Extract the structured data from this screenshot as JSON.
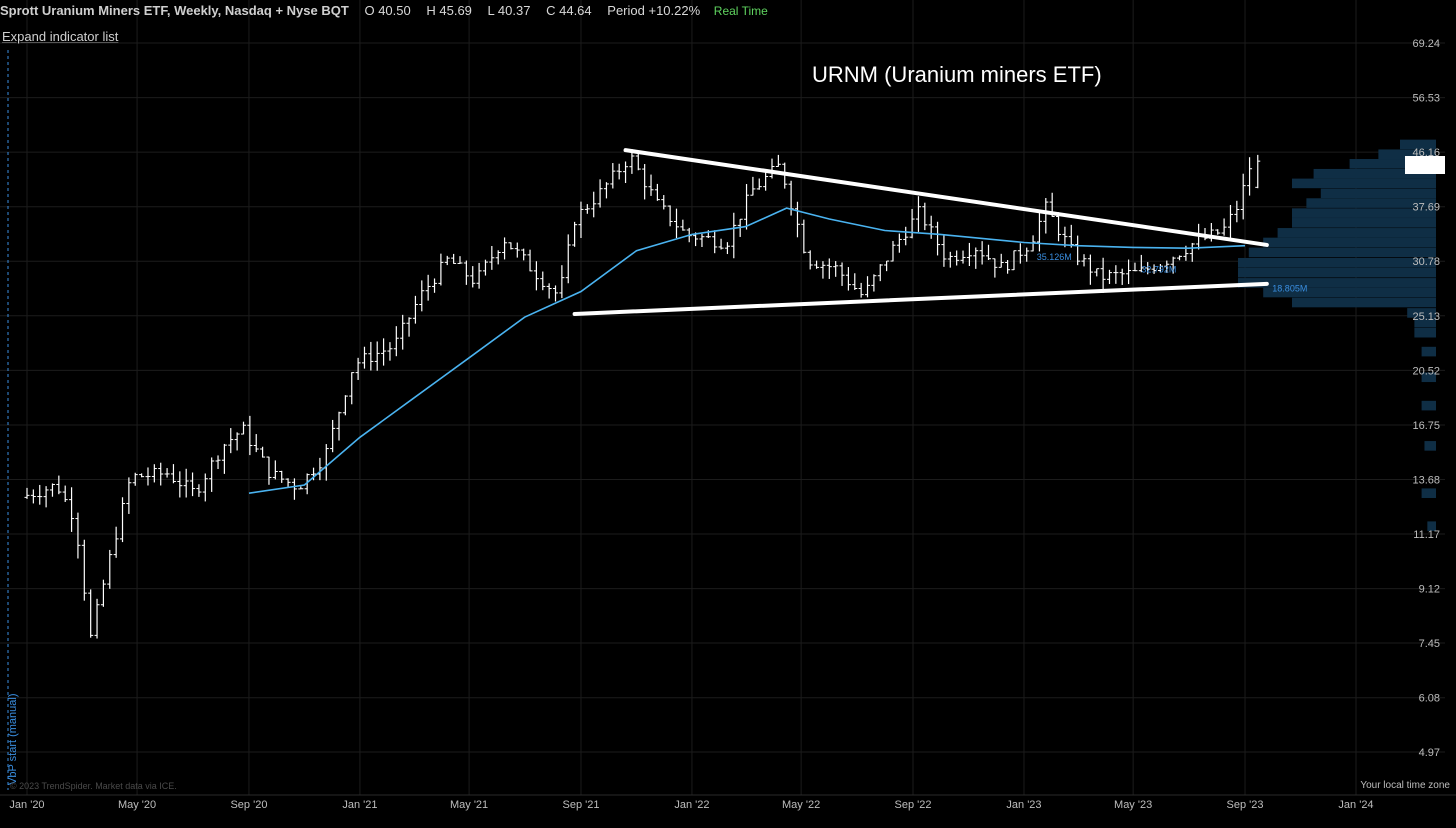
{
  "header": {
    "symbol": "Sprott Uranium Miners ETF, Weekly, Nasdaq + Nyse BQT",
    "open_label": "O",
    "open": "40.50",
    "high_label": "H",
    "high": "45.69",
    "low_label": "L",
    "low": "40.37",
    "close_label": "C",
    "close": "44.64",
    "period_label": "Period",
    "period": "+10.22%",
    "realtime": "Real Time"
  },
  "expand_label": "Expand indicator list",
  "vbp_label": "VbP start (manual)",
  "copyright": "© 2023 TrendSpider. Market data via ICE.",
  "timezone_label": "Your local time zone",
  "colors": {
    "background": "#000000",
    "bars": "#ffffff",
    "moving_average": "#4ab3f0",
    "volume_profile": "#0f2e45",
    "volume_label": "#3a8ee0",
    "trendlines": "#ffffff",
    "grid": "#1c1c1c"
  },
  "chart_data": {
    "type": "ohlc",
    "title": "URNM (Uranium miners ETF)",
    "y_scale": "log",
    "y_ticks": [
      "69.24",
      "56.53",
      "46.16",
      "37.69",
      "30.78",
      "25.13",
      "20.52",
      "16.75",
      "13.68",
      "11.17",
      "9.12",
      "7.45",
      "6.08",
      "4.97"
    ],
    "x_ticks": [
      "Jan '20",
      "May '20",
      "Sep '20",
      "Jan '21",
      "May '21",
      "Sep '21",
      "Jan '22",
      "May '22",
      "Sep '22",
      "Jan '23",
      "May '23",
      "Sep '23",
      "Jan '24"
    ],
    "price_path": [
      [
        "2020-01-01",
        12.8
      ],
      [
        "2020-02-10",
        13.4
      ],
      [
        "2020-03-01",
        11.8
      ],
      [
        "2020-03-18",
        7.6
      ],
      [
        "2020-04-10",
        10.5
      ],
      [
        "2020-05-01",
        13.8
      ],
      [
        "2020-06-10",
        14.0
      ],
      [
        "2020-07-10",
        13.0
      ],
      [
        "2020-08-10",
        15.5
      ],
      [
        "2020-09-01",
        16.5
      ],
      [
        "2020-10-01",
        14.0
      ],
      [
        "2020-11-01",
        13.3
      ],
      [
        "2020-12-01",
        15.0
      ],
      [
        "2021-01-01",
        21.0
      ],
      [
        "2021-02-15",
        22.5
      ],
      [
        "2021-03-15",
        27.0
      ],
      [
        "2021-04-15",
        31.0
      ],
      [
        "2021-05-15",
        28.5
      ],
      [
        "2021-06-15",
        33.5
      ],
      [
        "2021-07-15",
        30.0
      ],
      [
        "2021-08-15",
        27.0
      ],
      [
        "2021-09-01",
        36.0
      ],
      [
        "2021-10-01",
        40.0
      ],
      [
        "2021-11-01",
        45.5
      ],
      [
        "2021-12-01",
        38.0
      ],
      [
        "2022-01-01",
        34.0
      ],
      [
        "2022-02-15",
        33.0
      ],
      [
        "2022-03-15",
        40.0
      ],
      [
        "2022-04-15",
        44.0
      ],
      [
        "2022-05-15",
        31.0
      ],
      [
        "2022-06-15",
        30.0
      ],
      [
        "2022-07-15",
        27.0
      ],
      [
        "2022-08-15",
        32.0
      ],
      [
        "2022-09-15",
        37.0
      ],
      [
        "2022-10-15",
        31.0
      ],
      [
        "2022-11-15",
        32.5
      ],
      [
        "2022-12-15",
        30.0
      ],
      [
        "2023-01-15",
        33.0
      ],
      [
        "2023-02-01",
        37.5
      ],
      [
        "2023-03-01",
        32.0
      ],
      [
        "2023-04-01",
        29.0
      ],
      [
        "2023-05-15",
        29.5
      ],
      [
        "2023-06-15",
        31.0
      ],
      [
        "2023-07-15",
        33.0
      ],
      [
        "2023-08-15",
        34.5
      ],
      [
        "2023-09-01",
        38.0
      ],
      [
        "2023-09-15",
        44.64
      ]
    ],
    "last_bar": {
      "open": 40.5,
      "high": 45.69,
      "low": 40.37,
      "close": 44.64
    },
    "moving_average": [
      [
        "2020-09-01",
        13.0
      ],
      [
        "2020-11-01",
        13.4
      ],
      [
        "2021-01-01",
        16.0
      ],
      [
        "2021-03-01",
        18.5
      ],
      [
        "2021-05-01",
        21.5
      ],
      [
        "2021-07-01",
        25.0
      ],
      [
        "2021-09-01",
        27.5
      ],
      [
        "2021-11-01",
        32.0
      ],
      [
        "2022-01-01",
        34.0
      ],
      [
        "2022-03-01",
        35.0
      ],
      [
        "2022-04-15",
        37.5
      ],
      [
        "2022-06-01",
        36.0
      ],
      [
        "2022-08-01",
        34.5
      ],
      [
        "2022-10-01",
        34.0
      ],
      [
        "2023-01-01",
        33.0
      ],
      [
        "2023-03-01",
        32.6
      ],
      [
        "2023-05-01",
        32.4
      ],
      [
        "2023-07-01",
        32.3
      ],
      [
        "2023-09-01",
        32.6
      ]
    ],
    "trendlines": [
      {
        "name": "upper",
        "from": [
          "2021-10-20",
          46.5
        ],
        "to": [
          "2023-09-25",
          32.7
        ]
      },
      {
        "name": "lower",
        "from": [
          "2021-08-25",
          25.3
        ],
        "to": [
          "2023-09-25",
          28.3
        ]
      }
    ],
    "volume_profile": {
      "labels": [
        {
          "text": "35.126M",
          "price": 30.9,
          "date": "2023-01-15"
        },
        {
          "text": "32.792M",
          "price": 29.5,
          "date": "2023-05-10"
        },
        {
          "text": "18.805M",
          "price": 27.5,
          "date": "2023-10-01"
        }
      ],
      "rows": [
        [
          47.5,
          0.25
        ],
        [
          45.8,
          0.4
        ],
        [
          44.2,
          0.6
        ],
        [
          42.6,
          0.85
        ],
        [
          41.1,
          1.0
        ],
        [
          39.6,
          0.8
        ],
        [
          38.2,
          0.9
        ],
        [
          36.8,
          1.0
        ],
        [
          35.5,
          1.0
        ],
        [
          34.2,
          1.1
        ],
        [
          33.0,
          1.2
        ],
        [
          31.8,
          1.3
        ],
        [
          30.6,
          1.4
        ],
        [
          29.5,
          1.5
        ],
        [
          28.4,
          1.4
        ],
        [
          27.4,
          1.2
        ],
        [
          26.4,
          1.0
        ],
        [
          25.4,
          0.2
        ],
        [
          24.5,
          0.15
        ],
        [
          23.6,
          0.15
        ],
        [
          22.0,
          0.1
        ],
        [
          20.0,
          0.1
        ],
        [
          18.0,
          0.1
        ],
        [
          15.5,
          0.08
        ],
        [
          13.0,
          0.1
        ],
        [
          11.5,
          0.06
        ]
      ]
    }
  }
}
